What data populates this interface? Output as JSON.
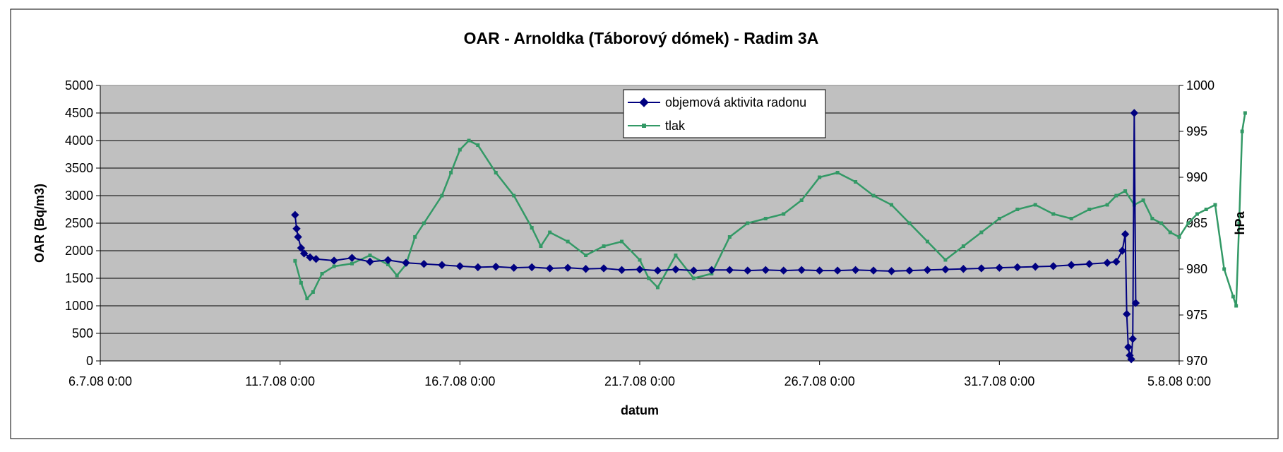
{
  "chart_data": {
    "type": "line",
    "title": "OAR - Arnoldka (Táborový dómek) - Radim 3A",
    "xlabel": "datum",
    "ylabel": "OAR (Bq/m3)",
    "y2label": "hPa",
    "xlim": [
      "6.7.08 0:00",
      "5.8.08 0:00"
    ],
    "x_tick_labels": [
      "6.7.08 0:00",
      "11.7.08 0:00",
      "16.7.08 0:00",
      "21.7.08 0:00",
      "26.7.08 0:00",
      "31.7.08 0:00",
      "5.8.08 0:00"
    ],
    "ylim": [
      0,
      5000
    ],
    "y_tick_labels": [
      "0",
      "500",
      "1000",
      "1500",
      "2000",
      "2500",
      "3000",
      "3500",
      "4000",
      "4500",
      "5000"
    ],
    "y2lim": [
      970,
      1000
    ],
    "y2_tick_labels": [
      "970",
      "975",
      "980",
      "985",
      "990",
      "995",
      "1000"
    ],
    "grid": "horizontal",
    "legend_position": "top-center",
    "background_color": "#c0c0c0",
    "series": [
      {
        "name": "objemová aktivita radonu",
        "axis": "left",
        "color": "#000080",
        "marker": "diamond",
        "x_day_values_note": "",
        "points": [
          [
            "11.7.08 10:00",
            2650
          ],
          [
            "11.7.08 11:00",
            2400
          ],
          [
            "11.7.08 12:00",
            2250
          ],
          [
            "11.7.08 14:00",
            2050
          ],
          [
            "11.7.08 16:00",
            1950
          ],
          [
            "11.7.08 20:00",
            1880
          ],
          [
            "12.7.08 0:00",
            1850
          ],
          [
            "12.7.08 12:00",
            1820
          ],
          [
            "13.7.08 0:00",
            1870
          ],
          [
            "13.7.08 12:00",
            1800
          ],
          [
            "14.7.08 0:00",
            1830
          ],
          [
            "14.7.08 12:00",
            1780
          ],
          [
            "15.7.08 0:00",
            1760
          ],
          [
            "15.7.08 12:00",
            1740
          ],
          [
            "16.7.08 0:00",
            1720
          ],
          [
            "16.7.08 12:00",
            1700
          ],
          [
            "17.7.08 0:00",
            1710
          ],
          [
            "17.7.08 12:00",
            1690
          ],
          [
            "18.7.08 0:00",
            1700
          ],
          [
            "18.7.08 12:00",
            1680
          ],
          [
            "19.7.08 0:00",
            1690
          ],
          [
            "19.7.08 12:00",
            1670
          ],
          [
            "20.7.08 0:00",
            1680
          ],
          [
            "20.7.08 12:00",
            1650
          ],
          [
            "21.7.08 0:00",
            1660
          ],
          [
            "21.7.08 12:00",
            1640
          ],
          [
            "22.7.08 0:00",
            1660
          ],
          [
            "22.7.08 12:00",
            1640
          ],
          [
            "23.7.08 0:00",
            1650
          ],
          [
            "23.7.08 12:00",
            1650
          ],
          [
            "24.7.08 0:00",
            1640
          ],
          [
            "24.7.08 12:00",
            1650
          ],
          [
            "25.7.08 0:00",
            1640
          ],
          [
            "25.7.08 12:00",
            1650
          ],
          [
            "26.7.08 0:00",
            1640
          ],
          [
            "26.7.08 12:00",
            1640
          ],
          [
            "27.7.08 0:00",
            1650
          ],
          [
            "27.7.08 12:00",
            1640
          ],
          [
            "28.7.08 0:00",
            1630
          ],
          [
            "28.7.08 12:00",
            1640
          ],
          [
            "29.7.08 0:00",
            1650
          ],
          [
            "29.7.08 12:00",
            1660
          ],
          [
            "30.7.08 0:00",
            1670
          ],
          [
            "30.7.08 12:00",
            1680
          ],
          [
            "31.7.08 0:00",
            1690
          ],
          [
            "31.7.08 12:00",
            1700
          ],
          [
            "1.8.08 0:00",
            1710
          ],
          [
            "1.8.08 12:00",
            1720
          ],
          [
            "2.8.08 0:00",
            1740
          ],
          [
            "2.8.08 12:00",
            1760
          ],
          [
            "3.8.08 0:00",
            1780
          ],
          [
            "3.8.08 6:00",
            1800
          ],
          [
            "3.8.08 10:00",
            2000
          ],
          [
            "3.8.08 12:00",
            2300
          ],
          [
            "3.8.08 13:00",
            850
          ],
          [
            "3.8.08 14:00",
            250
          ],
          [
            "3.8.08 15:00",
            100
          ],
          [
            "3.8.08 16:00",
            30
          ],
          [
            "3.8.08 17:00",
            400
          ],
          [
            "3.8.08 18:00",
            4500
          ],
          [
            "3.8.08 19:00",
            1050
          ]
        ]
      },
      {
        "name": "tlak",
        "axis": "right",
        "color": "#339966",
        "marker": "square",
        "points": [
          [
            "11.7.08 10:00",
            980.9
          ],
          [
            "11.7.08 14:00",
            978.5
          ],
          [
            "11.7.08 18:00",
            976.8
          ],
          [
            "11.7.08 22:00",
            977.5
          ],
          [
            "12.7.08 4:00",
            979.5
          ],
          [
            "12.7.08 12:00",
            980.3
          ],
          [
            "13.7.08 0:00",
            980.6
          ],
          [
            "13.7.08 12:00",
            981.5
          ],
          [
            "14.7.08 0:00",
            980.5
          ],
          [
            "14.7.08 6:00",
            979.3
          ],
          [
            "14.7.08 12:00",
            980.5
          ],
          [
            "14.7.08 18:00",
            983.5
          ],
          [
            "15.7.08 0:00",
            985.0
          ],
          [
            "15.7.08 12:00",
            988.0
          ],
          [
            "15.7.08 18:00",
            990.5
          ],
          [
            "16.7.08 0:00",
            993.0
          ],
          [
            "16.7.08 6:00",
            994.0
          ],
          [
            "16.7.08 12:00",
            993.5
          ],
          [
            "17.7.08 0:00",
            990.5
          ],
          [
            "17.7.08 12:00",
            988.0
          ],
          [
            "18.7.08 0:00",
            984.5
          ],
          [
            "18.7.08 6:00",
            982.5
          ],
          [
            "18.7.08 12:00",
            984.0
          ],
          [
            "19.7.08 0:00",
            983.0
          ],
          [
            "19.7.08 12:00",
            981.5
          ],
          [
            "20.7.08 0:00",
            982.5
          ],
          [
            "20.7.08 12:00",
            983.0
          ],
          [
            "21.7.08 0:00",
            981.0
          ],
          [
            "21.7.08 6:00",
            979.0
          ],
          [
            "21.7.08 12:00",
            978.0
          ],
          [
            "22.7.08 0:00",
            981.5
          ],
          [
            "22.7.08 12:00",
            979.0
          ],
          [
            "23.7.08 0:00",
            979.5
          ],
          [
            "23.7.08 12:00",
            983.5
          ],
          [
            "24.7.08 0:00",
            985.0
          ],
          [
            "24.7.08 12:00",
            985.5
          ],
          [
            "25.7.08 0:00",
            986.0
          ],
          [
            "25.7.08 12:00",
            987.5
          ],
          [
            "26.7.08 0:00",
            990.0
          ],
          [
            "26.7.08 12:00",
            990.5
          ],
          [
            "27.7.08 0:00",
            989.5
          ],
          [
            "27.7.08 12:00",
            988.0
          ],
          [
            "28.7.08 0:00",
            987.0
          ],
          [
            "28.7.08 12:00",
            985.0
          ],
          [
            "29.7.08 0:00",
            983.0
          ],
          [
            "29.7.08 12:00",
            981.0
          ],
          [
            "30.7.08 0:00",
            982.5
          ],
          [
            "30.7.08 12:00",
            984.0
          ],
          [
            "31.7.08 0:00",
            985.5
          ],
          [
            "31.7.08 12:00",
            986.5
          ],
          [
            "1.8.08 0:00",
            987.0
          ],
          [
            "1.8.08 12:00",
            986.0
          ],
          [
            "2.8.08 0:00",
            985.5
          ],
          [
            "2.8.08 12:00",
            986.5
          ],
          [
            "3.8.08 0:00",
            987.0
          ],
          [
            "3.8.08 6:00",
            988.0
          ],
          [
            "3.8.08 12:00",
            988.5
          ],
          [
            "3.8.08 18:00",
            987.0
          ],
          [
            "4.8.08 0:00",
            987.5
          ],
          [
            "4.8.08 6:00",
            985.5
          ],
          [
            "4.8.08 12:00",
            985.0
          ],
          [
            "4.8.08 18:00",
            984.0
          ],
          [
            "5.8.08 0:00",
            983.5
          ],
          [
            "5.8.08 6:00",
            985.0
          ],
          [
            "5.8.08 12:00",
            986.0
          ],
          [
            "5.8.08 18:00",
            986.5
          ],
          [
            "6.8.08 0:00",
            987.0
          ],
          [
            "6.8.08 6:00",
            980.0
          ],
          [
            "6.8.08 12:00",
            977.0
          ],
          [
            "6.8.08 14:00",
            976.0
          ],
          [
            "6.8.08 16:00",
            985.0
          ],
          [
            "6.8.08 18:00",
            995.0
          ],
          [
            "6.8.08 20:00",
            997.0
          ]
        ]
      }
    ]
  }
}
